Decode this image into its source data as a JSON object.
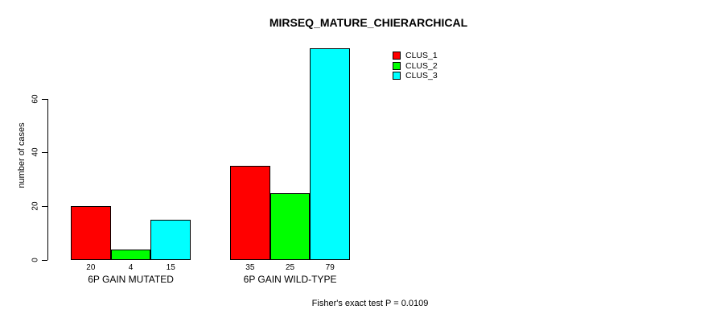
{
  "figure": {
    "background_color": "#ffffff",
    "title": "MIRSEQ_MATURE_CHIERARCHICAL",
    "footer": "Fisher's exact test P = 0.0109"
  },
  "chart_data": {
    "type": "bar",
    "title": "MIRSEQ_MATURE_CHIERARCHICAL",
    "xlabel": "",
    "ylabel": "number of cases",
    "categories": [
      "6P GAIN MUTATED",
      "6P GAIN WILD-TYPE"
    ],
    "series": [
      {
        "name": "CLUS_1",
        "color": "#FF0000",
        "values": [
          20,
          35
        ]
      },
      {
        "name": "CLUS_2",
        "color": "#00FF00",
        "values": [
          4,
          25
        ]
      },
      {
        "name": "CLUS_3",
        "color": "#00FFFF",
        "values": [
          15,
          79
        ]
      }
    ],
    "bar_value_labels": [
      [
        20,
        4,
        15
      ],
      [
        35,
        25,
        79
      ]
    ],
    "yticks": [
      0,
      20,
      40,
      60
    ],
    "ylim": [
      0,
      79
    ],
    "grid": false,
    "legend_position": "top-right",
    "legend_entries": [
      "CLUS_1",
      "CLUS_2",
      "CLUS_3"
    ],
    "annotation": "Fisher's exact test P = 0.0109",
    "bar_border_color": "#000000",
    "axis_color": "#000000"
  }
}
